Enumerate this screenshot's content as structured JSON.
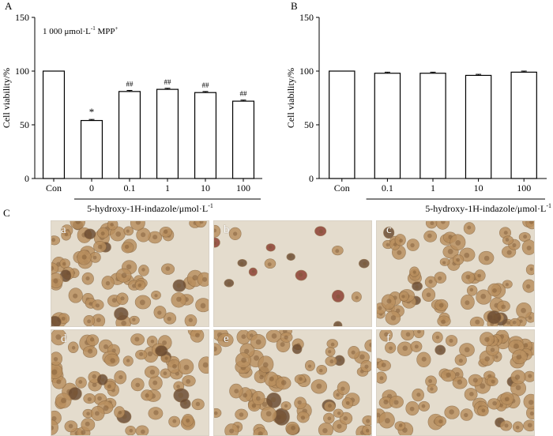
{
  "panels": {
    "A": {
      "letter": "A",
      "note": "1 000  μmol·L",
      "note_sup": "-1",
      "note_tail": " MPP",
      "note_tail_sup": "+"
    },
    "B": {
      "letter": "B"
    },
    "C": {
      "letter": "C"
    }
  },
  "chart_data": [
    {
      "id": "A",
      "type": "bar",
      "categories": [
        "Con",
        "0",
        "0.1",
        "1",
        "10",
        "100"
      ],
      "values": [
        100,
        54,
        81,
        83,
        80,
        72
      ],
      "errors": [
        0,
        1,
        1,
        1,
        1,
        1
      ],
      "annotations": [
        "",
        "*",
        "##",
        "##",
        "##",
        "##"
      ],
      "ylabel": "Cell viability/%",
      "yticks": [
        0,
        50,
        100,
        150
      ],
      "ylim": [
        0,
        150
      ],
      "xlabel": "5-hydroxy-1H-indazole/μmol·L",
      "xlabel_sup": "-1",
      "bar_fill": "#ffffff"
    },
    {
      "id": "B",
      "type": "bar",
      "categories": [
        "Con",
        "0.1",
        "1",
        "10",
        "100"
      ],
      "values": [
        100,
        98,
        98,
        96,
        99
      ],
      "errors": [
        0,
        1,
        1,
        1,
        1
      ],
      "annotations": [
        "",
        "",
        "",
        "",
        ""
      ],
      "ylabel": "Cell viability/%",
      "yticks": [
        0,
        50,
        100,
        150
      ],
      "ylim": [
        0,
        150
      ],
      "xlabel": "5-hydroxy-1H-indazole/μmol·L",
      "xlabel_sup": "-1",
      "bar_fill": "#ffffff"
    }
  ],
  "micrographs": [
    {
      "label": "a",
      "density": "high"
    },
    {
      "label": "b",
      "density": "low"
    },
    {
      "label": "c",
      "density": "high"
    },
    {
      "label": "d",
      "density": "high"
    },
    {
      "label": "e",
      "density": "high"
    },
    {
      "label": "f",
      "density": "high"
    }
  ],
  "colors": {
    "micro_bg": "#e4dccd",
    "cell": "#b98f5e",
    "cell_dark": "#6a4a30",
    "cell_red": "#8a3a2e"
  }
}
